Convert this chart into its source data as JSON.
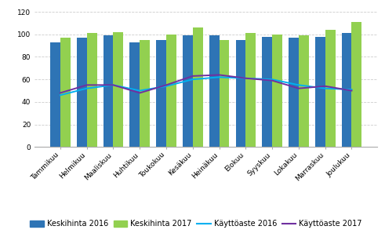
{
  "months": [
    "Tammikuu",
    "Helmikuu",
    "Maaliskuu",
    "Huhtikuu",
    "Toukokuu",
    "Kesäkuu",
    "Heinäkuu",
    "Elokuu",
    "Syyskuu",
    "Lokakuu",
    "Marraskuu",
    "Joulukuu"
  ],
  "keskihinta_2016": [
    93,
    97,
    99,
    93,
    95,
    99,
    99,
    95,
    98,
    97,
    98,
    101
  ],
  "keskihinta_2017": [
    97,
    101,
    102,
    95,
    100,
    106,
    95,
    101,
    100,
    99,
    104,
    111
  ],
  "kayttoaste_2016": [
    46,
    52,
    55,
    50,
    54,
    60,
    62,
    61,
    60,
    55,
    52,
    51
  ],
  "kayttoaste_2017": [
    48,
    55,
    55,
    48,
    55,
    63,
    64,
    61,
    59,
    52,
    54,
    50
  ],
  "bar_color_2016": "#2E74B5",
  "bar_color_2017": "#92D050",
  "line_color_2016": "#00B0F0",
  "line_color_2017": "#7030A0",
  "ylim": [
    0,
    120
  ],
  "yticks": [
    0,
    20,
    40,
    60,
    80,
    100,
    120
  ],
  "legend_labels": [
    "Keskihinta 2016",
    "Keskihinta 2017",
    "Käyttöaste 2016",
    "Käyttöaste 2017"
  ],
  "background_color": "#FFFFFF",
  "grid_color": "#CCCCCC",
  "tick_fontsize": 6.5,
  "legend_fontsize": 7,
  "bar_width": 0.38
}
